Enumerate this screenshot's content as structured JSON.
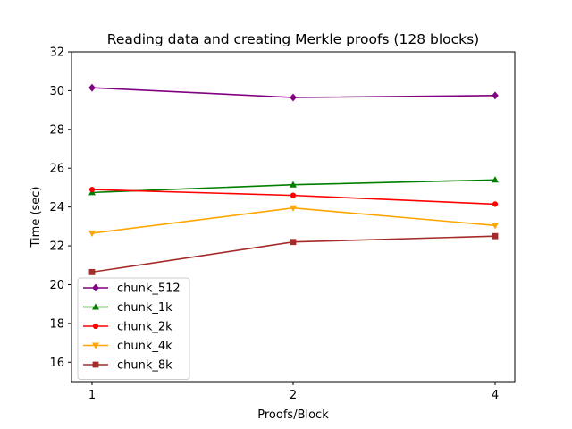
{
  "chart_data": {
    "type": "line",
    "title": "Reading data and creating Merkle proofs (128 blocks)",
    "xlabel": "Proofs/Block",
    "ylabel": "Time (sec)",
    "categories": [
      "1",
      "2",
      "4"
    ],
    "ylim": [
      15,
      32
    ],
    "yticks": [
      16,
      18,
      20,
      22,
      24,
      26,
      28,
      30,
      32
    ],
    "grid": false,
    "legend_position": "lower-left",
    "series": [
      {
        "name": "chunk_512",
        "values": [
          30.15,
          29.65,
          29.75
        ],
        "color": "#800080",
        "marker": "diamond"
      },
      {
        "name": "chunk_1k",
        "values": [
          24.75,
          25.15,
          25.4
        ],
        "color": "#008000",
        "marker": "triangle-up"
      },
      {
        "name": "chunk_2k",
        "values": [
          24.9,
          24.6,
          24.15
        ],
        "color": "#ff0000",
        "marker": "circle"
      },
      {
        "name": "chunk_4k",
        "values": [
          22.65,
          23.95,
          23.05
        ],
        "color": "#ffa500",
        "marker": "triangle-down"
      },
      {
        "name": "chunk_8k",
        "values": [
          20.65,
          22.2,
          22.5
        ],
        "color": "#a52a2a",
        "marker": "square"
      }
    ]
  }
}
